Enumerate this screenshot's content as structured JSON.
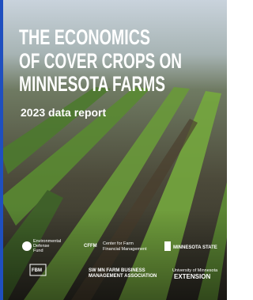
{
  "cover": {
    "title_lines": [
      "THE ECONOMICS",
      "OF COVER CROPS ON",
      "MINNESOTA FARMS"
    ],
    "subtitle": "2023 data report"
  },
  "logos": [
    {
      "lines": [
        "Environmental",
        "Defense",
        "Fund"
      ]
    },
    {
      "mark": "CFFM",
      "lines": [
        "Center for Farm",
        "Financial Management"
      ]
    },
    {
      "lines": [
        "MINNESOTA STATE"
      ]
    },
    {
      "mark": "FBM"
    },
    {
      "lines": [
        "SW MN FARM BUSINESS",
        "MANAGEMENT ASSOCIATION"
      ]
    },
    {
      "lines": [
        "University of Minnesota",
        "EXTENSION"
      ]
    }
  ]
}
